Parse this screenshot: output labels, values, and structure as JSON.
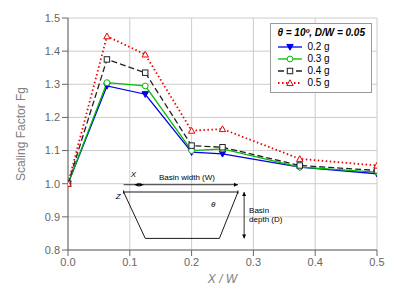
{
  "chart_data": {
    "type": "line",
    "x": [
      0.0,
      0.063,
      0.125,
      0.2,
      0.25,
      0.375,
      0.5
    ],
    "series": [
      {
        "name": "0.2 g",
        "color": "#0000ee",
        "values": [
          1.0,
          1.295,
          1.27,
          1.095,
          1.09,
          1.05,
          1.03
        ],
        "marker": "filled-triangle-down",
        "line_style": "solid"
      },
      {
        "name": "0.3 g",
        "color": "#00bb00",
        "values": [
          1.0,
          1.305,
          1.295,
          1.1,
          1.105,
          1.05,
          1.035
        ],
        "marker": "circle",
        "line_style": "solid"
      },
      {
        "name": "0.4 g",
        "color": "#222222",
        "values": [
          1.0,
          1.375,
          1.335,
          1.115,
          1.11,
          1.055,
          1.04
        ],
        "marker": "square",
        "line_style": "dashed"
      },
      {
        "name": "0.5 g",
        "color": "#ee0000",
        "values": [
          1.0,
          1.445,
          1.39,
          1.16,
          1.165,
          1.075,
          1.055
        ],
        "marker": "triangle-up",
        "line_style": "dotted"
      }
    ],
    "xlim": [
      0.0,
      0.5
    ],
    "ylim": [
      0.8,
      1.5
    ],
    "xticks": [
      {
        "value": 0.0,
        "label": "0.0"
      },
      0.1,
      0.2,
      0.3,
      0.4,
      0.5
    ],
    "yticks": [
      0.8,
      0.9,
      {
        "value": 1.0,
        "label": "1.0"
      },
      1.1,
      1.2,
      1.3,
      1.4,
      1.5
    ],
    "xlabel": "X / W",
    "ylabel": "Scaling Factor Fg",
    "grid": true,
    "legend": "upper right",
    "legend_title": "θ = 10º,  D/W = 0.05",
    "annotations": [
      "Basin width (W)",
      "X",
      "Z",
      "θ",
      "Basin\ndepth (D)"
    ],
    "basin": {
      "x_left": 0.09,
      "x_right": 0.275,
      "y_top": 0.975,
      "y_bottom": 0.835,
      "x_inner_left": 0.125,
      "x_inner_right": 0.245
    }
  }
}
